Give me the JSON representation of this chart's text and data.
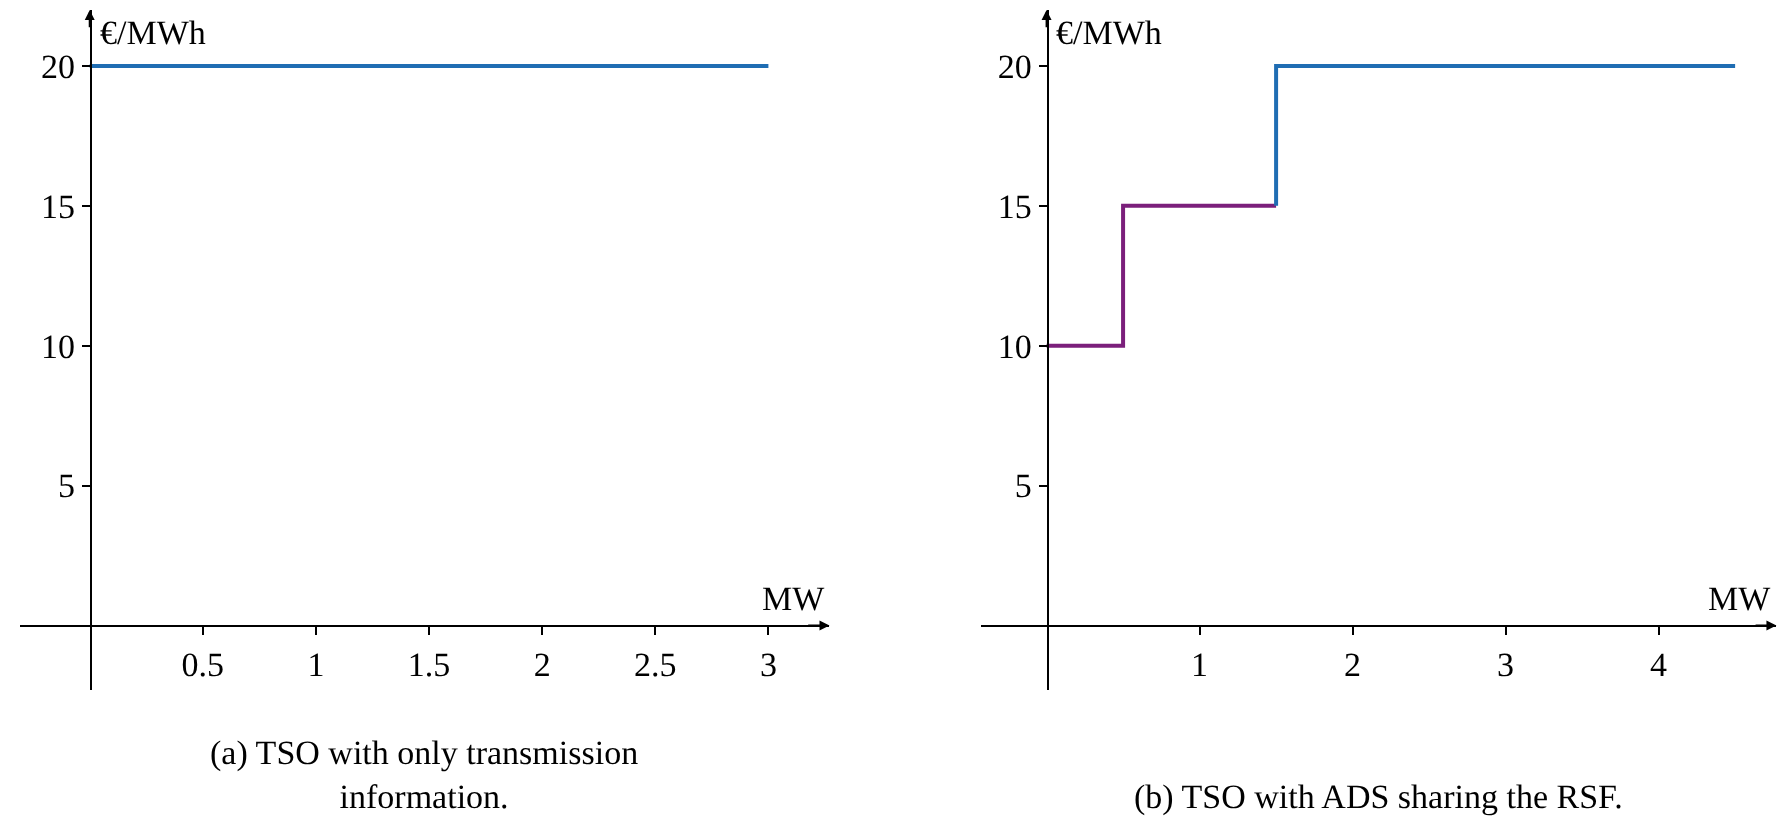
{
  "chart_data": [
    {
      "type": "line",
      "xlabel": "MW",
      "ylabel": "€/MWh",
      "xlim": [
        -0.31,
        3.27
      ],
      "ylim": [
        -2.3,
        22
      ],
      "xticks": [
        0.5,
        1,
        1.5,
        2,
        2.5,
        3
      ],
      "yticks": [
        5,
        10,
        15,
        20
      ],
      "series": [
        {
          "color": "#1f6db3",
          "x": [
            0,
            3
          ],
          "values": [
            20,
            20
          ]
        }
      ],
      "annotations": [
        "(a) TSO with only transmission information."
      ]
    },
    {
      "type": "step",
      "xlabel": "MW",
      "ylabel": "€/MWh",
      "xlim": [
        -0.43,
        4.77
      ],
      "ylim": [
        -2.3,
        22
      ],
      "xticks": [
        1,
        2,
        3,
        4
      ],
      "yticks": [
        5,
        10,
        15,
        20
      ],
      "series": [
        {
          "color": "#7b1f7b",
          "x": [
            0,
            0.5,
            1.5
          ],
          "values": [
            10,
            15,
            15
          ]
        },
        {
          "color": "#1f6db3",
          "x": [
            1.5,
            1.5,
            4.5
          ],
          "values": [
            15,
            20,
            20
          ]
        }
      ],
      "annotations": [
        "(b) TSO with ADS sharing the RSF."
      ]
    }
  ]
}
